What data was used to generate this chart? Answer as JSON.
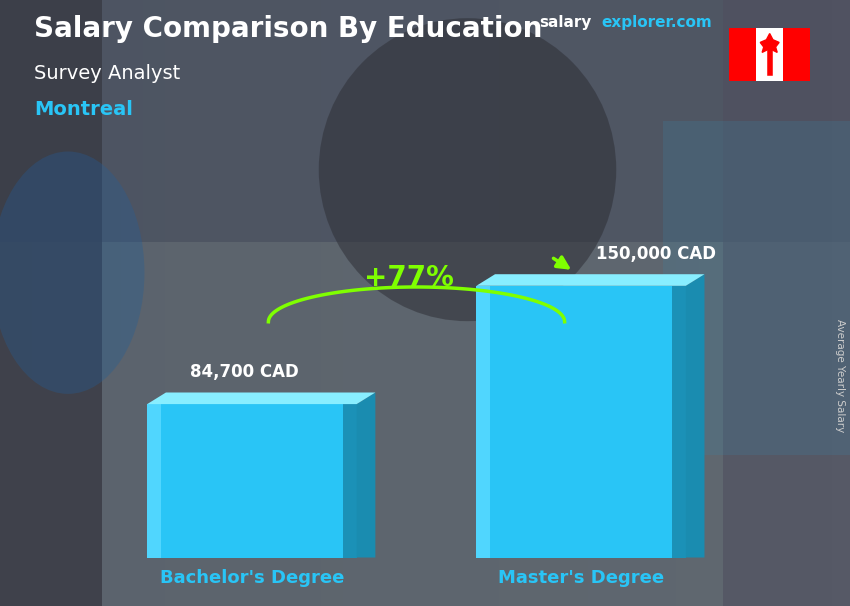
{
  "title_main": "Salary Comparison By Education",
  "title_sub": "Survey Analyst",
  "title_city": "Montreal",
  "watermark_salary": "salary",
  "watermark_rest": "explorer.com",
  "ylabel_rotated": "Average Yearly Salary",
  "categories": [
    "Bachelor's Degree",
    "Master's Degree"
  ],
  "values": [
    84700,
    150000
  ],
  "value_labels": [
    "84,700 CAD",
    "150,000 CAD"
  ],
  "pct_change": "+77%",
  "bar_face_color": "#29c5f6",
  "bar_left_color": "#55d8ff",
  "bar_right_color": "#1a8cb0",
  "bar_top_color": "#88eeff",
  "bg_color": "#5a6070",
  "title_color": "#ffffff",
  "subtitle_color": "#ffffff",
  "city_color": "#29c5f6",
  "value_label_color": "#ffffff",
  "xlabel_color": "#29c5f6",
  "pct_color": "#7fff00",
  "arrow_color": "#7fff00",
  "watermark_salary_color": "#ffffff",
  "watermark_rest_color": "#29c5f6",
  "side_label_color": "#cccccc",
  "bar_width": 0.28,
  "bar_positions": [
    0.28,
    0.72
  ],
  "ylim": [
    0,
    1.0
  ],
  "figsize": [
    8.5,
    6.06
  ],
  "dpi": 100
}
